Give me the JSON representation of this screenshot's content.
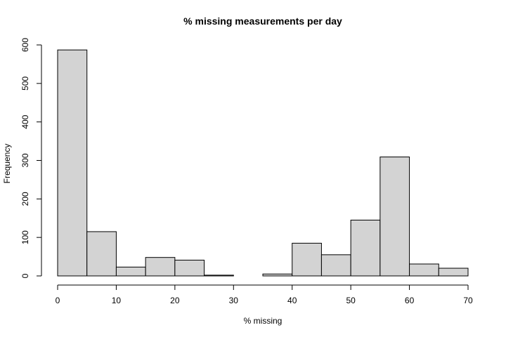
{
  "chart_data": {
    "type": "bar",
    "subtype": "histogram",
    "title": "% missing measurements per day",
    "xlabel": "% missing",
    "ylabel": "Frequency",
    "bins": [
      {
        "start": 0,
        "end": 5,
        "count": 587
      },
      {
        "start": 5,
        "end": 10,
        "count": 115
      },
      {
        "start": 10,
        "end": 15,
        "count": 23
      },
      {
        "start": 15,
        "end": 20,
        "count": 48
      },
      {
        "start": 20,
        "end": 25,
        "count": 41
      },
      {
        "start": 25,
        "end": 30,
        "count": 2
      },
      {
        "start": 30,
        "end": 35,
        "count": 0
      },
      {
        "start": 35,
        "end": 40,
        "count": 5
      },
      {
        "start": 40,
        "end": 45,
        "count": 85
      },
      {
        "start": 45,
        "end": 50,
        "count": 55
      },
      {
        "start": 50,
        "end": 55,
        "count": 145
      },
      {
        "start": 55,
        "end": 60,
        "count": 309
      },
      {
        "start": 60,
        "end": 65,
        "count": 31
      },
      {
        "start": 65,
        "end": 70,
        "count": 20
      }
    ],
    "xlim": [
      0,
      70
    ],
    "ylim": [
      0,
      600
    ],
    "xticks": [
      0,
      10,
      20,
      30,
      40,
      50,
      60,
      70
    ],
    "yticks": [
      0,
      100,
      200,
      300,
      400,
      500,
      600
    ],
    "bar_color": "#d3d3d3",
    "edge_color": "#000000",
    "grid": false
  }
}
